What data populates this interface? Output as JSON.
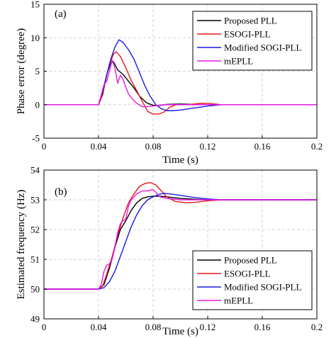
{
  "chart_data": [
    {
      "type": "line",
      "panel_label": "(a)",
      "xlabel": "Time (s)",
      "ylabel": "Phase error (degree)",
      "xlim": [
        0,
        0.2
      ],
      "ylim": [
        -5,
        15
      ],
      "xticks": [
        0,
        0.04,
        0.08,
        0.12,
        0.16,
        0.2
      ],
      "xtick_labels": [
        "0",
        "0.04",
        "0.08",
        "0.12",
        "0.16",
        "0.2"
      ],
      "yticks": [
        -5,
        0,
        5,
        10,
        15
      ],
      "ytick_labels": [
        "-5",
        "0",
        "5",
        "10",
        "15"
      ],
      "grid": true,
      "legend_position": "top-right",
      "series": [
        {
          "name": "Proposed PLL",
          "color": "#000000",
          "x": [
            0,
            0.04,
            0.043,
            0.046,
            0.049,
            0.051,
            0.054,
            0.058,
            0.062,
            0.066,
            0.07,
            0.075,
            0.08,
            0.085,
            0.09,
            0.1,
            0.11,
            0.12,
            0.13,
            0.14,
            0.2
          ],
          "y": [
            0,
            0,
            1.5,
            4.5,
            6.3,
            6.4,
            5.2,
            4.5,
            3.5,
            2.5,
            1.3,
            0.3,
            -0.1,
            -0.1,
            0.05,
            0.1,
            0.05,
            0,
            0,
            0,
            0
          ]
        },
        {
          "name": "ESOGI-PLL",
          "color": "#e8161b",
          "x": [
            0,
            0.04,
            0.042,
            0.045,
            0.048,
            0.051,
            0.053,
            0.056,
            0.06,
            0.064,
            0.068,
            0.072,
            0.076,
            0.08,
            0.084,
            0.088,
            0.092,
            0.097,
            0.105,
            0.115,
            0.12,
            0.13,
            0.14,
            0.2
          ],
          "y": [
            0,
            0,
            1,
            3.5,
            6,
            7.6,
            7.9,
            7.2,
            5.5,
            3.6,
            2.1,
            0.5,
            -1,
            -1.4,
            -1.4,
            -1.1,
            -0.4,
            0,
            0,
            0.2,
            0.2,
            0,
            0,
            0
          ]
        },
        {
          "name": "Modified SOGI-PLL",
          "color": "#1a1ae6",
          "x": [
            0,
            0.04,
            0.043,
            0.046,
            0.049,
            0.052,
            0.055,
            0.058,
            0.062,
            0.066,
            0.07,
            0.074,
            0.078,
            0.082,
            0.086,
            0.09,
            0.094,
            0.1,
            0.11,
            0.12,
            0.13,
            0.14,
            0.2
          ],
          "y": [
            0,
            0,
            2,
            4.5,
            6.8,
            8.6,
            9.7,
            9.3,
            8.2,
            6.8,
            4.8,
            2.8,
            1.2,
            0,
            -0.6,
            -0.9,
            -0.9,
            -0.8,
            -0.5,
            -0.2,
            0,
            0,
            0
          ]
        },
        {
          "name": "mEPLL",
          "color": "#e619e6",
          "x": [
            0,
            0.04,
            0.042,
            0.044,
            0.046,
            0.048,
            0.05,
            0.052,
            0.054,
            0.056,
            0.058,
            0.06,
            0.062,
            0.065,
            0.068,
            0.072,
            0.076,
            0.08,
            0.085,
            0.09,
            0.1,
            0.11,
            0.12,
            0.13,
            0.2
          ],
          "y": [
            0,
            0,
            1.5,
            3,
            3.5,
            5,
            6.7,
            5.5,
            3.2,
            4.4,
            3.8,
            2.6,
            1.6,
            0.8,
            0.2,
            -0.3,
            -0.3,
            -0.2,
            -0.05,
            0,
            0,
            0,
            0,
            0,
            0
          ]
        }
      ]
    },
    {
      "type": "line",
      "panel_label": "(b)",
      "xlabel": "Time (s)",
      "ylabel": "Estimated frequency (Hz)",
      "xlim": [
        0,
        0.2
      ],
      "ylim": [
        49,
        54
      ],
      "xticks": [
        0,
        0.04,
        0.08,
        0.12,
        0.16,
        0.2
      ],
      "xtick_labels": [
        "0",
        "0.04",
        "0.08",
        "0.12",
        "0.16",
        "0.2"
      ],
      "yticks": [
        49,
        50,
        51,
        52,
        53,
        54
      ],
      "ytick_labels": [
        "49",
        "50",
        "51",
        "52",
        "53",
        "54"
      ],
      "grid": true,
      "legend_position": "bottom-right",
      "series": [
        {
          "name": "Proposed PLL",
          "color": "#000000",
          "x": [
            0,
            0.04,
            0.044,
            0.048,
            0.052,
            0.056,
            0.06,
            0.064,
            0.068,
            0.072,
            0.076,
            0.08,
            0.085,
            0.09,
            0.1,
            0.11,
            0.12,
            0.13,
            0.2
          ],
          "y": [
            50,
            50,
            50.15,
            50.7,
            51.4,
            52,
            52.3,
            52.65,
            52.9,
            53.05,
            53.1,
            53.12,
            53.12,
            53.1,
            53.05,
            53.02,
            53,
            53,
            53
          ]
        },
        {
          "name": "ESOGI-PLL",
          "color": "#e8161b",
          "x": [
            0,
            0.04,
            0.043,
            0.046,
            0.05,
            0.054,
            0.058,
            0.062,
            0.066,
            0.07,
            0.074,
            0.078,
            0.082,
            0.086,
            0.09,
            0.096,
            0.104,
            0.112,
            0.12,
            0.13,
            0.2
          ],
          "y": [
            50,
            50,
            50.1,
            50.5,
            51.1,
            51.8,
            52.4,
            52.9,
            53.2,
            53.45,
            53.55,
            53.58,
            53.5,
            53.3,
            53.1,
            52.95,
            52.9,
            52.92,
            52.97,
            53,
            53
          ]
        },
        {
          "name": "Modified SOGI-PLL",
          "color": "#1a1ae6",
          "x": [
            0,
            0.04,
            0.044,
            0.048,
            0.052,
            0.056,
            0.06,
            0.064,
            0.068,
            0.072,
            0.076,
            0.08,
            0.084,
            0.088,
            0.092,
            0.1,
            0.11,
            0.12,
            0.13,
            0.2
          ],
          "y": [
            50,
            50,
            50.05,
            50.25,
            50.6,
            51.1,
            51.6,
            52.1,
            52.5,
            52.8,
            53,
            53.1,
            53.18,
            53.22,
            53.2,
            53.15,
            53.08,
            53.03,
            53,
            53
          ]
        },
        {
          "name": "mEPLL",
          "color": "#e619e6",
          "x": [
            0,
            0.04,
            0.042,
            0.044,
            0.046,
            0.048,
            0.05,
            0.052,
            0.054,
            0.056,
            0.058,
            0.06,
            0.062,
            0.064,
            0.068,
            0.072,
            0.076,
            0.08,
            0.085,
            0.09,
            0.1,
            0.11,
            0.2
          ],
          "y": [
            50,
            50,
            50.15,
            50.6,
            50.8,
            50.85,
            51,
            51.4,
            51.9,
            52.2,
            52.3,
            52.35,
            52.8,
            53,
            53.2,
            53.3,
            53.3,
            53.35,
            53.1,
            53.05,
            53,
            53,
            53
          ]
        }
      ]
    }
  ]
}
